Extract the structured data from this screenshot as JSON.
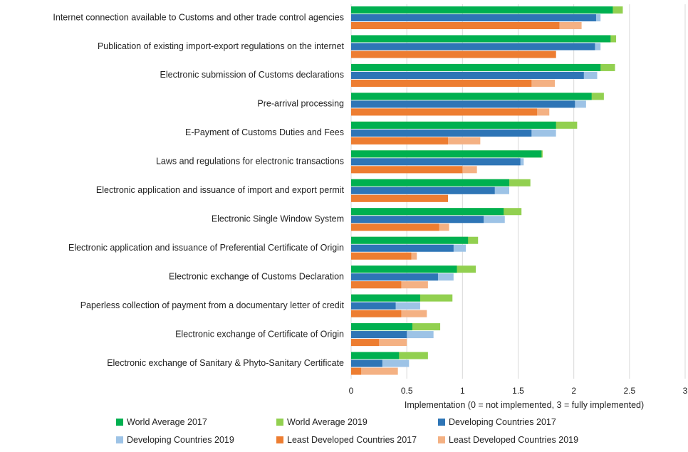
{
  "chart_data": {
    "type": "bar",
    "orientation": "horizontal",
    "title": "",
    "xlabel": "Implementation (0 = not implemented, 3 = fully implemented)",
    "ylabel": "",
    "xlim": [
      0,
      3
    ],
    "xticks": [
      "0",
      "0.5",
      "1",
      "1.5",
      "2",
      "2.5",
      "3"
    ],
    "grid": "vertical",
    "legend_position": "bottom",
    "categories": [
      "Internet connection available to Customs and other trade control agencies",
      "Publication of existing import-export regulations on the internet",
      "Electronic submission of Customs declarations",
      "Pre-arrival processing",
      "E-Payment of Customs Duties and Fees",
      "Laws and regulations for electronic transactions",
      "Electronic application and issuance of import and export permit",
      "Electronic Single Window System",
      "Electronic application and issuance of Preferential Certificate of Origin",
      "Electronic exchange of Customs Declaration",
      "Paperless collection of payment from a documentary letter of credit",
      "Electronic exchange of Certificate of Origin",
      "Electronic exchange of Sanitary & Phyto-Sanitary Certificate"
    ],
    "series": [
      {
        "name": "World Average 2017",
        "color": "#00b050",
        "group": 0,
        "values": [
          2.35,
          2.33,
          2.24,
          2.16,
          1.84,
          1.71,
          1.42,
          1.37,
          1.05,
          0.95,
          0.62,
          0.55,
          0.43
        ]
      },
      {
        "name": "World Average 2019",
        "color": "#92d050",
        "group": 0,
        "values": [
          2.44,
          2.38,
          2.37,
          2.27,
          2.03,
          1.72,
          1.61,
          1.53,
          1.14,
          1.12,
          0.91,
          0.8,
          0.69
        ]
      },
      {
        "name": "Developing Countries 2017",
        "color": "#2e75b6",
        "group": 1,
        "values": [
          2.2,
          2.19,
          2.09,
          2.01,
          1.62,
          1.52,
          1.29,
          1.19,
          0.92,
          0.78,
          0.4,
          0.5,
          0.28
        ]
      },
      {
        "name": "Developing Countries 2019",
        "color": "#9dc3e6",
        "group": 1,
        "values": [
          2.24,
          2.24,
          2.21,
          2.11,
          1.84,
          1.55,
          1.42,
          1.38,
          1.03,
          0.92,
          0.62,
          0.74,
          0.52
        ]
      },
      {
        "name": "Least Developed Countries 2017",
        "color": "#ed7d31",
        "group": 2,
        "values": [
          1.87,
          1.84,
          1.62,
          1.67,
          0.87,
          1.0,
          0.87,
          0.79,
          0.54,
          0.45,
          0.45,
          0.25,
          0.09
        ]
      },
      {
        "name": "Least Developed Countries 2019",
        "color": "#f4b183",
        "group": 2,
        "values": [
          2.07,
          1.84,
          1.83,
          1.78,
          1.16,
          1.13,
          0.87,
          0.88,
          0.59,
          0.69,
          0.68,
          0.5,
          0.42
        ]
      }
    ],
    "draw_order": [
      1,
      0,
      3,
      2,
      5,
      4
    ]
  }
}
